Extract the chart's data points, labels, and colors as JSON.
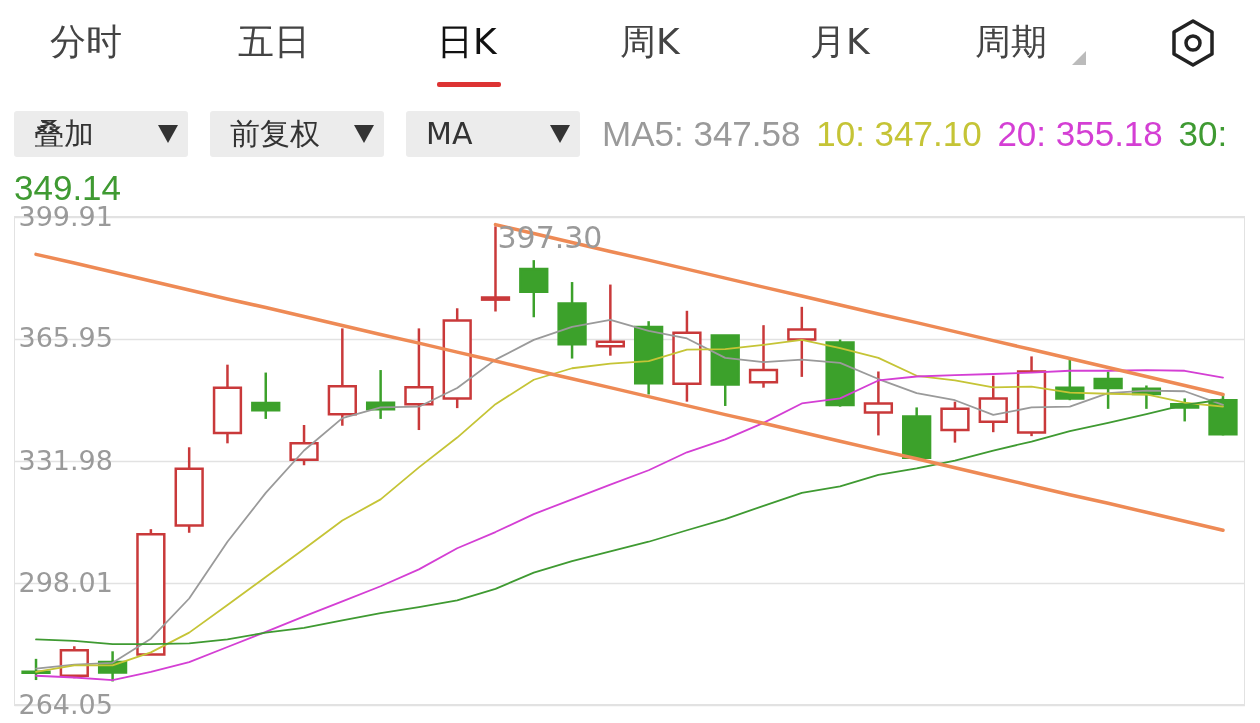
{
  "chart_data": {
    "type": "candlestick",
    "categories": [
      null,
      null,
      null,
      null,
      null,
      null,
      null,
      null,
      null,
      null,
      null,
      null,
      null,
      null,
      null,
      null,
      null,
      null,
      null,
      null,
      null,
      null,
      null,
      null,
      null,
      null,
      null,
      null,
      null,
      null,
      null,
      null
    ],
    "ohlc": [
      [
        273.3,
        276.9,
        271.0,
        273.0
      ],
      [
        272.2,
        280.4,
        271.5,
        279.3
      ],
      [
        276.0,
        279.0,
        270.6,
        273.1
      ],
      [
        278.1,
        313.0,
        278.1,
        311.6
      ],
      [
        314.0,
        335.8,
        312.0,
        329.8
      ],
      [
        339.8,
        358.8,
        336.9,
        352.4
      ],
      [
        348.1,
        356.6,
        343.7,
        346.1
      ],
      [
        332.3,
        342.0,
        330.8,
        336.9
      ],
      [
        345.0,
        368.9,
        341.8,
        352.8
      ],
      [
        348.2,
        357.3,
        343.7,
        346.4
      ],
      [
        347.8,
        368.9,
        340.6,
        352.5
      ],
      [
        349.4,
        374.5,
        346.7,
        371.1
      ],
      [
        376.9,
        397.3,
        373.6,
        377.5
      ],
      [
        385.4,
        387.9,
        372.0,
        379.1
      ],
      [
        375.8,
        381.8,
        360.5,
        364.5
      ],
      [
        363.9,
        381.1,
        361.3,
        365.2
      ],
      [
        369.3,
        370.9,
        350.5,
        353.6
      ],
      [
        353.5,
        373.8,
        348.5,
        367.7
      ],
      [
        366.9,
        366.9,
        347.3,
        353.3
      ],
      [
        353.9,
        369.8,
        352.4,
        357.3
      ],
      [
        365.8,
        374.9,
        355.4,
        368.6
      ],
      [
        365.0,
        365.8,
        347.1,
        347.6
      ],
      [
        345.5,
        356.9,
        339.1,
        348.0
      ],
      [
        344.4,
        346.9,
        332.9,
        332.9
      ],
      [
        340.6,
        348.5,
        337.1,
        346.5
      ],
      [
        342.9,
        355.7,
        340.0,
        349.4
      ],
      [
        339.9,
        361.1,
        338.9,
        356.9
      ],
      [
        352.4,
        360.1,
        348.9,
        349.4
      ],
      [
        354.8,
        356.9,
        346.5,
        352.3
      ],
      [
        352.1,
        353.0,
        346.5,
        350.6
      ],
      [
        347.8,
        349.4,
        343.0,
        346.9
      ],
      [
        348.9,
        350.7,
        339.1,
        339.4
      ]
    ],
    "colors": [
      "#3ca12b",
      "#c9393a",
      "#3ca12b",
      "#c9393a",
      "#c9393a",
      "#c9393a",
      "#3ca12b",
      "#c9393a",
      "#c9393a",
      "#3ca12b",
      "#c9393a",
      "#c9393a",
      "#c9393a",
      "#3ca12b",
      "#3ca12b",
      "#c9393a",
      "#3ca12b",
      "#c9393a",
      "#3ca12b",
      "#c9393a",
      "#c9393a",
      "#3ca12b",
      "#c9393a",
      "#3ca12b",
      "#c9393a",
      "#c9393a",
      "#c9393a",
      "#3ca12b",
      "#3ca12b",
      "#3ca12b",
      "#3ca12b",
      "#3ca12b"
    ],
    "series": [
      {
        "name": "MA5: 347.58",
        "type": "line",
        "color": "#9a9a9a",
        "values": [
          274.2,
          275.3,
          275.8,
          282.5,
          293.7,
          309.5,
          323.1,
          334.9,
          343.9,
          346.9,
          347.1,
          352.3,
          360.2,
          365.7,
          369.3,
          371.3,
          368.2,
          366.1,
          360.7,
          359.5,
          360.2,
          359.3,
          354.8,
          350.9,
          348.9,
          344.8,
          346.9,
          347.1,
          350.9,
          351.6,
          351.4,
          347.6
        ]
      },
      {
        "name": "10: 347.10",
        "type": "line",
        "color": "#c5c436",
        "values": [
          273.3,
          275.1,
          275.1,
          278.7,
          284.2,
          291.9,
          299.7,
          307.5,
          315.4,
          321.3,
          330.2,
          338.5,
          347.8,
          354.6,
          357.8,
          359.1,
          359.8,
          363.0,
          363.1,
          364.3,
          365.7,
          363.4,
          360.7,
          355.7,
          354.4,
          352.5,
          352.7,
          351.0,
          350.7,
          350.5,
          348.2,
          347.1
        ]
      },
      {
        "name": "20: 355.18",
        "type": "line",
        "color": "#d43fd4",
        "values": [
          272.2,
          271.7,
          271.0,
          273.3,
          276.0,
          280.2,
          284.4,
          288.7,
          292.9,
          297.1,
          301.8,
          307.7,
          312.2,
          317.2,
          321.3,
          325.4,
          329.4,
          334.4,
          338.0,
          342.6,
          348.0,
          349.4,
          354.4,
          355.5,
          355.9,
          356.2,
          356.6,
          357.1,
          357.1,
          357.3,
          357.1,
          355.2
        ]
      },
      {
        "name": "30: 349.14",
        "type": "line",
        "color": "#3f9a32",
        "values": [
          282.3,
          281.9,
          281.0,
          281.0,
          281.2,
          282.3,
          284.2,
          285.5,
          287.6,
          289.6,
          291.3,
          293.2,
          296.4,
          300.9,
          304.1,
          306.8,
          309.5,
          312.7,
          315.8,
          319.5,
          323.1,
          324.9,
          328.1,
          329.9,
          332.1,
          334.9,
          337.4,
          340.3,
          342.6,
          345.0,
          347.6,
          349.1
        ]
      },
      {
        "type": "line",
        "color": "#ee8a55",
        "values": [
          null,
          null,
          null,
          null,
          null,
          null,
          null,
          null,
          null,
          null,
          null,
          null,
          397.8,
          395.3,
          392.8,
          390.3,
          387.9,
          385.4,
          382.9,
          380.4,
          377.9,
          375.4,
          372.9,
          370.5,
          368.0,
          365.5,
          363.0,
          360.5,
          358.0,
          355.5,
          353.0,
          350.5
        ]
      },
      {
        "type": "line",
        "color": "#ee8a55",
        "values": [
          389.5,
          387.1,
          384.6,
          382.1,
          379.6,
          377.1,
          374.7,
          372.2,
          369.7,
          367.2,
          364.8,
          362.3,
          359.8,
          357.3,
          354.9,
          352.4,
          349.9,
          347.4,
          344.9,
          342.5,
          340.0,
          337.5,
          335.0,
          332.6,
          330.1,
          327.6,
          325.1,
          322.6,
          320.2,
          317.7,
          315.2,
          312.7
        ]
      }
    ],
    "ylim": [
      264.05,
      399.91
    ],
    "yticks": [
      399.91,
      365.95,
      331.98,
      298.01,
      264.05
    ],
    "grid": "y",
    "tick_labels": "y",
    "legend": "top right",
    "annotations": [
      "分时",
      "五日",
      "日K",
      "周K",
      "月K",
      "周期",
      "叠加",
      "前复权",
      "MA",
      "397.30"
    ]
  }
}
